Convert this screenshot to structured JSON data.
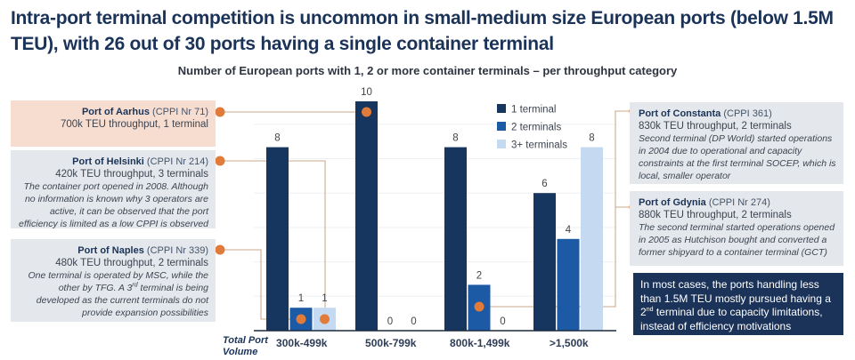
{
  "header": {
    "title": "Intra-port terminal competition is uncommon in small-medium size European ports (below 1.5M TEU), with 26 out of 30 ports having a single container terminal"
  },
  "chart_data": {
    "type": "bar",
    "title": "Number of European ports with 1, 2 or more container terminals – per throughput category",
    "xlabel": "Total Port Volume",
    "ylabel": "",
    "categories": [
      "300k-499k",
      "500k-799k",
      "800k-1,499k",
      ">1,500k"
    ],
    "series": [
      {
        "name": "1 terminal",
        "color": "#17365f",
        "values": [
          8,
          10,
          8,
          6
        ]
      },
      {
        "name": "2 terminals",
        "color": "#1d5aa6",
        "values": [
          1,
          0,
          2,
          4
        ]
      },
      {
        "name": "3+ terminals",
        "color": "#c5daf1",
        "values": [
          1,
          0,
          0,
          8
        ]
      }
    ],
    "ylim": [
      0,
      10
    ],
    "grid": true,
    "legend": "top-center"
  },
  "annotations": {
    "marker_color": "#e07b39",
    "aarhus": {
      "name": "Port of Aarhus",
      "cppi": "(CPPI Nr 71)",
      "sub": "700k TEU throughput, 1 terminal"
    },
    "helsinki": {
      "name": "Port of Helsinki",
      "cppi": "(CPPI Nr 214)",
      "sub": "420k TEU throughput, 3 terminals",
      "desc": "The container port opened in 2008. Although no information is known why 3 operators are active, it can be observed that  the port efficiency is limited as a low CPPI is observed"
    },
    "naples": {
      "name": "Port of Naples",
      "cppi": "(CPPI Nr 339)",
      "sub": "480k TEU throughput, 2 terminals",
      "desc_a": "One terminal is operated by MSC, while the other by TFG. A 3",
      "desc_sup": "rd",
      "desc_b": " terminal is being developed as the current terminals do not provide expansion possibilities"
    },
    "constanta": {
      "name": "Port of Constanta",
      "cppi": "(CPPI 361)",
      "sub": "830k TEU throughput, 2 terminals",
      "desc": "Second terminal (DP World) started operations in 2004 due to operational and capacity constraints at the first terminal SOCEP, which is local, smaller operator"
    },
    "gdynia": {
      "name": "Port of Gdynia",
      "cppi": "(CPPI Nr 274)",
      "sub": "880k TEU throughput, 2 terminals",
      "desc": "The second terminal started operations opened in 2005 as Hutchison bought and converted a former shipyard to a container terminal (GCT)"
    }
  },
  "note": {
    "text_a": "In most cases, the ports handling less than 1.5M TEU mostly pursued having a 2",
    "sup": "nd",
    "text_b": " terminal due to capacity limitations, instead of efficiency motivations"
  },
  "axis": {
    "line1": "Total Port",
    "line2": "Volume"
  }
}
